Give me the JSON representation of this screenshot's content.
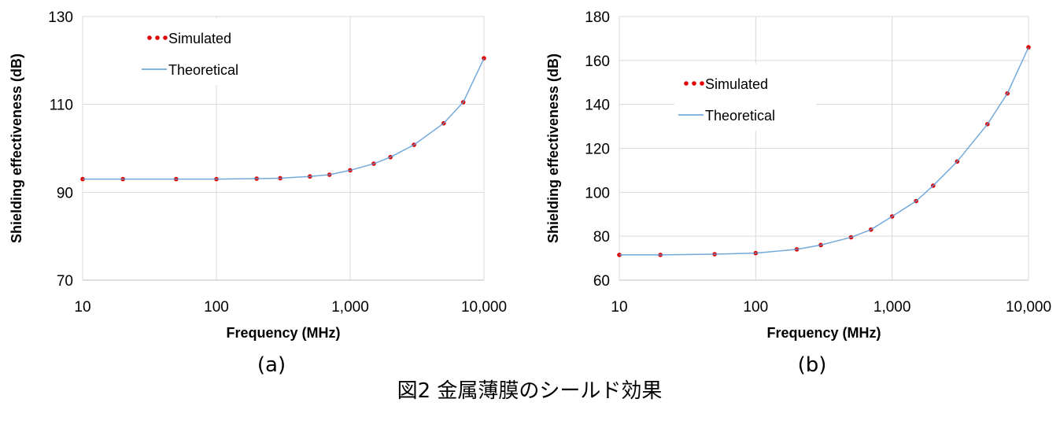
{
  "chart_data": [
    {
      "type": "line",
      "panel_label": "(a)",
      "xlabel": "Frequency (MHz)",
      "ylabel": "Shielding effectiveness (dB)",
      "x": [
        10,
        20,
        50,
        100,
        200,
        300,
        500,
        700,
        1000,
        1500,
        2000,
        3000,
        5000,
        7000,
        10000
      ],
      "xscale": "log",
      "xlim": [
        10,
        10000
      ],
      "xticks": [
        10,
        100,
        {
          "value": 1000,
          "label": "1,000"
        },
        {
          "value": 10000,
          "label": "10,000"
        }
      ],
      "ylim": [
        70,
        130
      ],
      "yticks": [
        70,
        90,
        110,
        130
      ],
      "grid": true,
      "legend": "upper left",
      "series": [
        {
          "name": "Simulated",
          "color": "#e00000",
          "style": "dotted",
          "values": [
            93,
            93,
            93,
            93,
            93.1,
            93.2,
            93.6,
            94,
            95,
            96.5,
            98,
            100.8,
            105.7,
            110.5,
            120.5
          ]
        },
        {
          "name": "Theoretical",
          "color": "#5b9bd5",
          "style": "line",
          "values": [
            93,
            93,
            93,
            93,
            93.1,
            93.2,
            93.6,
            94,
            95,
            96.5,
            98,
            100.8,
            105.7,
            110.5,
            120.5
          ]
        }
      ]
    },
    {
      "type": "line",
      "panel_label": "(b)",
      "xlabel": "Frequency (MHz)",
      "ylabel": "Shielding effectiveness (dB)",
      "x": [
        10,
        20,
        50,
        100,
        200,
        300,
        500,
        700,
        1000,
        1500,
        2000,
        3000,
        5000,
        7000,
        10000
      ],
      "xscale": "log",
      "xlim": [
        10,
        10000
      ],
      "xticks": [
        10,
        100,
        {
          "value": 1000,
          "label": "1,000"
        },
        {
          "value": 10000,
          "label": "10,000"
        }
      ],
      "ylim": [
        60,
        180
      ],
      "yticks": [
        60,
        80,
        100,
        120,
        140,
        160,
        180
      ],
      "grid": true,
      "legend": "center left",
      "series": [
        {
          "name": "Simulated",
          "color": "#e00000",
          "style": "dotted",
          "values": [
            71.5,
            71.5,
            71.8,
            72.3,
            74,
            76,
            79.5,
            83,
            89,
            96,
            103,
            114,
            131,
            145,
            166
          ]
        },
        {
          "name": "Theoretical",
          "color": "#5b9bd5",
          "style": "line",
          "values": [
            71.5,
            71.5,
            71.8,
            72.3,
            74,
            76,
            79.5,
            83,
            89,
            96,
            103,
            114,
            131,
            145,
            166
          ]
        }
      ]
    }
  ],
  "caption": "図2 金属薄膜のシールド効果"
}
